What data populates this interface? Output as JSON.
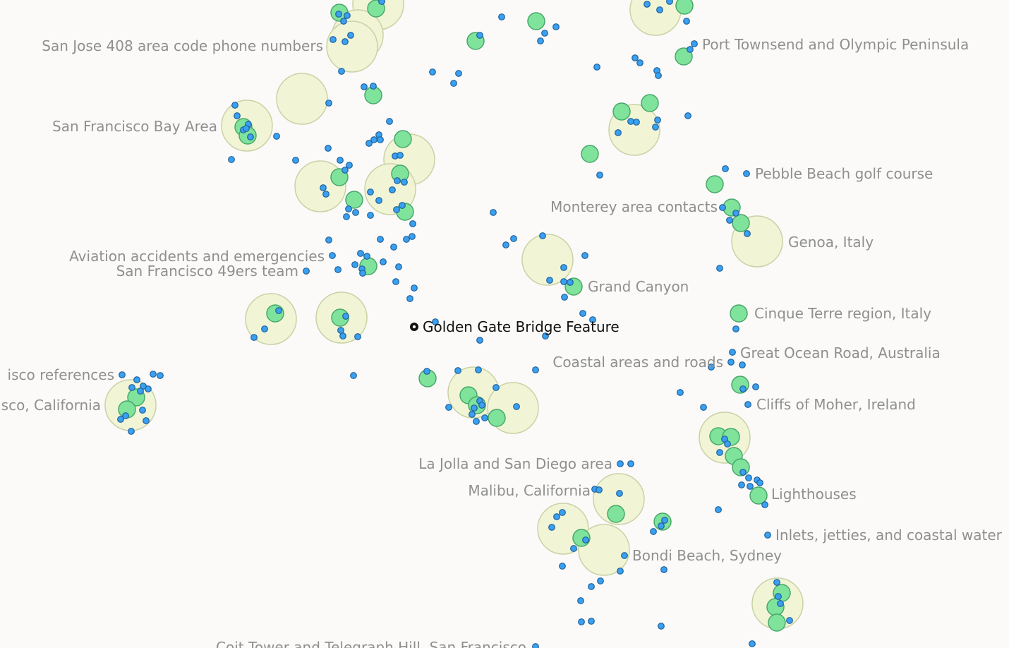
{
  "colors": {
    "background": "#fbfaf9",
    "cluster_fill": "#f1f5d6",
    "cluster_stroke": "#c9d2a6",
    "topic_fill": "#7fe39c",
    "topic_stroke": "#4aa86a",
    "point_fill": "#3aa0f0",
    "point_stroke": "#20609a",
    "label": "#8f8f8f",
    "selected_label": "#111111"
  },
  "labels": [
    {
      "id": "san-jose-408",
      "text": "San Jose 408 area code phone numbers"
    },
    {
      "id": "port-townsend",
      "text": "Port Townsend and Olympic Peninsula"
    },
    {
      "id": "sf-bay-area",
      "text": "San Francisco Bay Area"
    },
    {
      "id": "pebble-beach",
      "text": "Pebble Beach golf course"
    },
    {
      "id": "monterey",
      "text": "Monterey area contacts"
    },
    {
      "id": "genoa",
      "text": "Genoa, Italy"
    },
    {
      "id": "aviation",
      "text": "Aviation accidents and emergencies"
    },
    {
      "id": "sf-49ers",
      "text": "San Francisco 49ers team"
    },
    {
      "id": "grand-canyon",
      "text": "Grand Canyon"
    },
    {
      "id": "cinque-terre",
      "text": "Cinque Terre region, Italy"
    },
    {
      "id": "golden-gate",
      "text": "Golden Gate Bridge Feature",
      "selected": true
    },
    {
      "id": "great-ocean-road",
      "text": "Great Ocean Road, Australia"
    },
    {
      "id": "sf-references",
      "text": "isco references"
    },
    {
      "id": "coastal-areas",
      "text": "Coastal areas and roads"
    },
    {
      "id": "sf-california",
      "text": "sco, California"
    },
    {
      "id": "cliffs-of-moher",
      "text": "Cliffs of Moher, Ireland"
    },
    {
      "id": "la-jolla",
      "text": "La Jolla and San Diego area"
    },
    {
      "id": "malibu",
      "text": "Malibu, California"
    },
    {
      "id": "lighthouses",
      "text": "Lighthouses"
    },
    {
      "id": "inlets",
      "text": "Inlets, jetties, and coastal water"
    },
    {
      "id": "bondi",
      "text": "Bondi Beach, Sydney"
    },
    {
      "id": "coit-tower",
      "text": "Coit Tower and Telegraph Hill, San Francisco"
    }
  ]
}
